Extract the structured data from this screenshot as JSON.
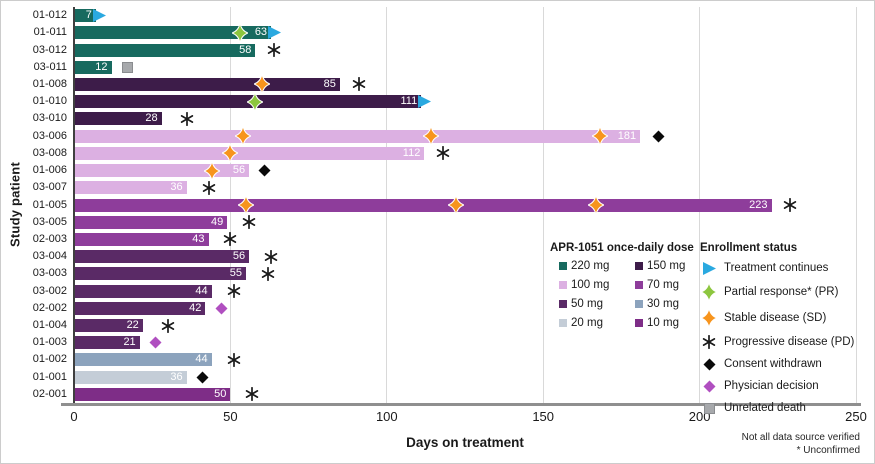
{
  "figure": {
    "x_axis_title": "Days on treatment",
    "y_axis_title": "Study patient",
    "footnote_line1": "Not all data source verified",
    "footnote_line2": "* Unconfirmed"
  },
  "chart_data": {
    "type": "bar",
    "subtype": "swimmer-plot",
    "orientation": "horizontal",
    "xlabel": "Days on treatment",
    "ylabel": "Study patient",
    "xlim": [
      0,
      250
    ],
    "xticks": [
      0,
      50,
      100,
      150,
      200,
      250
    ],
    "grid": "vertical-light",
    "dose_legend_title": "APR-1051 once-daily dose",
    "status_legend_title": "Enrollment status",
    "doses": [
      {
        "label": "220 mg",
        "color": "#176a5f"
      },
      {
        "label": "150 mg",
        "color": "#3d1c49"
      },
      {
        "label": "100 mg",
        "color": "#dcb0e2"
      },
      {
        "label": "70 mg",
        "color": "#8e3d9b"
      },
      {
        "label": "50 mg",
        "color": "#5a2a66"
      },
      {
        "label": "30 mg",
        "color": "#8ca3bd"
      },
      {
        "label": "20 mg",
        "color": "#c4cdd7"
      },
      {
        "label": "10 mg",
        "color": "#7e2d87"
      }
    ],
    "statuses": [
      {
        "key": "continues",
        "icon": "arrow-right",
        "label": "Treatment continues",
        "color": "#2aa9e0"
      },
      {
        "key": "pr",
        "icon": "four-point-star",
        "label": "Partial response* (PR)",
        "color": "#8dc63f"
      },
      {
        "key": "sd",
        "icon": "four-point-star",
        "label": "Stable disease (SD)",
        "color": "#f7941d"
      },
      {
        "key": "pd",
        "icon": "asterisk",
        "label": "Progressive disease (PD)",
        "color": "#1a1a1a"
      },
      {
        "key": "withdrawn",
        "icon": "diamond",
        "label": "Consent withdrawn",
        "color": "#0a0a0a"
      },
      {
        "key": "physician",
        "icon": "diamond",
        "label": "Physician decision",
        "color": "#b04fc0"
      },
      {
        "key": "death",
        "icon": "square",
        "label": "Unrelated death",
        "color": "#a7a9ac"
      }
    ],
    "patients": [
      {
        "id": "01-012",
        "dose": "220 mg",
        "days": 7,
        "markers": [
          {
            "type": "continues",
            "day": 7
          }
        ]
      },
      {
        "id": "01-011",
        "dose": "220 mg",
        "days": 63,
        "markers": [
          {
            "type": "pr",
            "day": 53
          },
          {
            "type": "continues",
            "day": 63
          }
        ]
      },
      {
        "id": "03-012",
        "dose": "220 mg",
        "days": 58,
        "markers": [
          {
            "type": "pd",
            "day": 64
          }
        ]
      },
      {
        "id": "03-011",
        "dose": "220 mg",
        "days": 12,
        "markers": [
          {
            "type": "death",
            "day": 17
          }
        ]
      },
      {
        "id": "01-008",
        "dose": "150 mg",
        "days": 85,
        "markers": [
          {
            "type": "sd",
            "day": 60
          },
          {
            "type": "pd",
            "day": 91
          }
        ]
      },
      {
        "id": "01-010",
        "dose": "150 mg",
        "days": 111,
        "markers": [
          {
            "type": "pr",
            "day": 58
          },
          {
            "type": "continues",
            "day": 111
          }
        ]
      },
      {
        "id": "03-010",
        "dose": "150 mg",
        "days": 28,
        "markers": [
          {
            "type": "pd",
            "day": 36
          }
        ]
      },
      {
        "id": "03-006",
        "dose": "100 mg",
        "days": 181,
        "markers": [
          {
            "type": "sd",
            "day": 54
          },
          {
            "type": "sd",
            "day": 114
          },
          {
            "type": "sd",
            "day": 168
          },
          {
            "type": "withdrawn",
            "day": 187
          }
        ]
      },
      {
        "id": "03-008",
        "dose": "100 mg",
        "days": 112,
        "markers": [
          {
            "type": "sd",
            "day": 50
          },
          {
            "type": "pd",
            "day": 118
          }
        ]
      },
      {
        "id": "01-006",
        "dose": "100 mg",
        "days": 56,
        "markers": [
          {
            "type": "sd",
            "day": 44
          },
          {
            "type": "withdrawn",
            "day": 61
          }
        ]
      },
      {
        "id": "03-007",
        "dose": "100 mg",
        "days": 36,
        "markers": [
          {
            "type": "pd",
            "day": 43
          }
        ]
      },
      {
        "id": "01-005",
        "dose": "70 mg",
        "days": 223,
        "markers": [
          {
            "type": "sd",
            "day": 55
          },
          {
            "type": "sd",
            "day": 122
          },
          {
            "type": "sd",
            "day": 167
          },
          {
            "type": "pd",
            "day": 229
          }
        ]
      },
      {
        "id": "03-005",
        "dose": "70 mg",
        "days": 49,
        "markers": [
          {
            "type": "pd",
            "day": 56
          }
        ]
      },
      {
        "id": "02-003",
        "dose": "70 mg",
        "days": 43,
        "markers": [
          {
            "type": "pd",
            "day": 50
          }
        ]
      },
      {
        "id": "03-004",
        "dose": "50 mg",
        "days": 56,
        "markers": [
          {
            "type": "pd",
            "day": 63
          }
        ]
      },
      {
        "id": "03-003",
        "dose": "50 mg",
        "days": 55,
        "markers": [
          {
            "type": "pd",
            "day": 62
          }
        ]
      },
      {
        "id": "03-002",
        "dose": "50 mg",
        "days": 44,
        "markers": [
          {
            "type": "pd",
            "day": 51
          }
        ]
      },
      {
        "id": "02-002",
        "dose": "50 mg",
        "days": 42,
        "markers": [
          {
            "type": "physician",
            "day": 47
          }
        ]
      },
      {
        "id": "01-004",
        "dose": "50 mg",
        "days": 22,
        "markers": [
          {
            "type": "pd",
            "day": 30
          }
        ]
      },
      {
        "id": "01-003",
        "dose": "50 mg",
        "days": 21,
        "markers": [
          {
            "type": "physician",
            "day": 26
          }
        ]
      },
      {
        "id": "01-002",
        "dose": "30 mg",
        "days": 44,
        "markers": [
          {
            "type": "pd",
            "day": 51
          }
        ]
      },
      {
        "id": "01-001",
        "dose": "20 mg",
        "days": 36,
        "markers": [
          {
            "type": "withdrawn",
            "day": 41
          }
        ]
      },
      {
        "id": "02-001",
        "dose": "10 mg",
        "days": 50,
        "markers": [
          {
            "type": "pd",
            "day": 57
          }
        ]
      }
    ]
  }
}
